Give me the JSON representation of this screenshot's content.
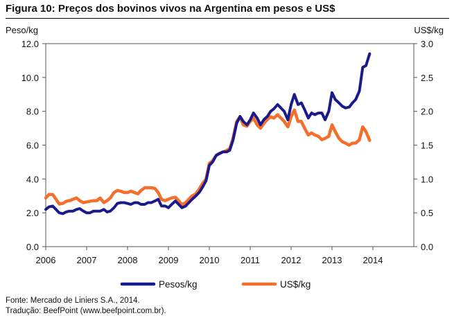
{
  "title": "Figura 10: Preços dos bovinos vivos na Argentina em pesos e US$",
  "source_line": "Fonte: Mercado de Liniers S.A., 2014.",
  "translation_line": "Tradução: BeefPoint (www.beefpoint.com.br).",
  "colors": {
    "pesos": "#1a1a8c",
    "usd": "#f36f2b",
    "axis": "#555555"
  },
  "chart_data": {
    "type": "line",
    "title": "Figura 10: Preços dos bovinos vivos na Argentina em pesos e US$",
    "ylabel_left": "Peso/kg",
    "ylabel_right": "US$/kg",
    "xlabel": "",
    "xlim": [
      2006.0,
      2015.0
    ],
    "ylim_left": [
      0,
      12
    ],
    "ylim_right": [
      0,
      3
    ],
    "grid": false,
    "legend": "bottom",
    "x_ticks": [
      2006,
      2007,
      2008,
      2009,
      2010,
      2011,
      2012,
      2013,
      2014
    ],
    "y_ticks_left": [
      "0.0",
      "2.0",
      "4.0",
      "6.0",
      "8.0",
      "10.0",
      "12.0"
    ],
    "y_ticks_right": [
      "0.0",
      "0.5",
      "1.0",
      "1.5",
      "2.0",
      "2.5",
      "3.0"
    ],
    "series": [
      {
        "name": "Pesos/kg",
        "axis": "left",
        "points": [
          [
            2006.0,
            2.2
          ],
          [
            2006.08,
            2.35
          ],
          [
            2006.17,
            2.4
          ],
          [
            2006.25,
            2.2
          ],
          [
            2006.33,
            2.0
          ],
          [
            2006.42,
            1.95
          ],
          [
            2006.5,
            2.05
          ],
          [
            2006.58,
            2.1
          ],
          [
            2006.67,
            2.1
          ],
          [
            2006.75,
            2.2
          ],
          [
            2006.83,
            2.25
          ],
          [
            2006.92,
            2.1
          ],
          [
            2007.0,
            2.0
          ],
          [
            2007.08,
            2.0
          ],
          [
            2007.17,
            2.1
          ],
          [
            2007.25,
            2.1
          ],
          [
            2007.33,
            2.1
          ],
          [
            2007.42,
            2.2
          ],
          [
            2007.5,
            2.05
          ],
          [
            2007.58,
            2.1
          ],
          [
            2007.67,
            2.3
          ],
          [
            2007.75,
            2.55
          ],
          [
            2007.83,
            2.6
          ],
          [
            2007.92,
            2.6
          ],
          [
            2008.0,
            2.55
          ],
          [
            2008.08,
            2.5
          ],
          [
            2008.17,
            2.6
          ],
          [
            2008.25,
            2.6
          ],
          [
            2008.33,
            2.5
          ],
          [
            2008.42,
            2.5
          ],
          [
            2008.5,
            2.6
          ],
          [
            2008.58,
            2.6
          ],
          [
            2008.67,
            2.7
          ],
          [
            2008.75,
            2.8
          ],
          [
            2008.83,
            2.4
          ],
          [
            2008.92,
            2.4
          ],
          [
            2009.0,
            2.3
          ],
          [
            2009.08,
            2.5
          ],
          [
            2009.17,
            2.7
          ],
          [
            2009.25,
            2.5
          ],
          [
            2009.33,
            2.3
          ],
          [
            2009.42,
            2.4
          ],
          [
            2009.5,
            2.6
          ],
          [
            2009.58,
            2.8
          ],
          [
            2009.67,
            3.0
          ],
          [
            2009.75,
            3.2
          ],
          [
            2009.83,
            3.5
          ],
          [
            2009.92,
            3.9
          ],
          [
            2010.0,
            4.8
          ],
          [
            2010.08,
            5.0
          ],
          [
            2010.17,
            5.4
          ],
          [
            2010.25,
            5.5
          ],
          [
            2010.33,
            5.6
          ],
          [
            2010.42,
            5.6
          ],
          [
            2010.5,
            5.7
          ],
          [
            2010.58,
            6.3
          ],
          [
            2010.67,
            7.3
          ],
          [
            2010.75,
            7.7
          ],
          [
            2010.83,
            7.4
          ],
          [
            2010.92,
            7.2
          ],
          [
            2011.0,
            7.5
          ],
          [
            2011.08,
            7.9
          ],
          [
            2011.17,
            7.6
          ],
          [
            2011.25,
            7.2
          ],
          [
            2011.33,
            7.5
          ],
          [
            2011.42,
            7.7
          ],
          [
            2011.5,
            8.0
          ],
          [
            2011.58,
            8.15
          ],
          [
            2011.67,
            8.4
          ],
          [
            2011.75,
            8.2
          ],
          [
            2011.83,
            8.0
          ],
          [
            2011.92,
            7.5
          ],
          [
            2012.0,
            8.4
          ],
          [
            2012.08,
            9.0
          ],
          [
            2012.17,
            8.4
          ],
          [
            2012.25,
            8.5
          ],
          [
            2012.33,
            8.1
          ],
          [
            2012.42,
            7.6
          ],
          [
            2012.5,
            7.9
          ],
          [
            2012.58,
            7.8
          ],
          [
            2012.67,
            7.9
          ],
          [
            2012.75,
            7.9
          ],
          [
            2012.83,
            7.5
          ],
          [
            2012.92,
            8.0
          ],
          [
            2013.0,
            9.1
          ],
          [
            2013.08,
            8.7
          ],
          [
            2013.17,
            8.5
          ],
          [
            2013.25,
            8.3
          ],
          [
            2013.33,
            8.2
          ],
          [
            2013.42,
            8.25
          ],
          [
            2013.5,
            8.5
          ],
          [
            2013.58,
            8.7
          ],
          [
            2013.67,
            9.2
          ],
          [
            2013.75,
            10.6
          ],
          [
            2013.83,
            10.7
          ],
          [
            2013.92,
            11.4
          ]
        ]
      },
      {
        "name": "US$/kg",
        "axis": "right",
        "points": [
          [
            2006.0,
            0.72
          ],
          [
            2006.08,
            0.77
          ],
          [
            2006.17,
            0.77
          ],
          [
            2006.25,
            0.7
          ],
          [
            2006.33,
            0.63
          ],
          [
            2006.42,
            0.64
          ],
          [
            2006.5,
            0.67
          ],
          [
            2006.58,
            0.68
          ],
          [
            2006.67,
            0.7
          ],
          [
            2006.75,
            0.72
          ],
          [
            2006.83,
            0.68
          ],
          [
            2006.92,
            0.65
          ],
          [
            2007.0,
            0.66
          ],
          [
            2007.08,
            0.67
          ],
          [
            2007.17,
            0.68
          ],
          [
            2007.25,
            0.68
          ],
          [
            2007.33,
            0.72
          ],
          [
            2007.42,
            0.65
          ],
          [
            2007.5,
            0.68
          ],
          [
            2007.58,
            0.72
          ],
          [
            2007.67,
            0.8
          ],
          [
            2007.75,
            0.83
          ],
          [
            2007.83,
            0.82
          ],
          [
            2007.92,
            0.8
          ],
          [
            2008.0,
            0.8
          ],
          [
            2008.08,
            0.82
          ],
          [
            2008.17,
            0.8
          ],
          [
            2008.25,
            0.78
          ],
          [
            2008.33,
            0.83
          ],
          [
            2008.42,
            0.87
          ],
          [
            2008.5,
            0.87
          ],
          [
            2008.58,
            0.87
          ],
          [
            2008.67,
            0.86
          ],
          [
            2008.75,
            0.8
          ],
          [
            2008.83,
            0.7
          ],
          [
            2008.92,
            0.68
          ],
          [
            2009.0,
            0.7
          ],
          [
            2009.08,
            0.72
          ],
          [
            2009.17,
            0.73
          ],
          [
            2009.25,
            0.68
          ],
          [
            2009.33,
            0.62
          ],
          [
            2009.42,
            0.65
          ],
          [
            2009.5,
            0.7
          ],
          [
            2009.58,
            0.75
          ],
          [
            2009.67,
            0.78
          ],
          [
            2009.75,
            0.85
          ],
          [
            2009.83,
            0.93
          ],
          [
            2009.92,
            1.0
          ],
          [
            2010.0,
            1.23
          ],
          [
            2010.08,
            1.27
          ],
          [
            2010.17,
            1.35
          ],
          [
            2010.25,
            1.38
          ],
          [
            2010.33,
            1.4
          ],
          [
            2010.42,
            1.42
          ],
          [
            2010.5,
            1.45
          ],
          [
            2010.58,
            1.6
          ],
          [
            2010.67,
            1.85
          ],
          [
            2010.75,
            1.92
          ],
          [
            2010.83,
            1.8
          ],
          [
            2010.92,
            1.78
          ],
          [
            2011.0,
            1.85
          ],
          [
            2011.08,
            1.9
          ],
          [
            2011.17,
            1.8
          ],
          [
            2011.25,
            1.75
          ],
          [
            2011.33,
            1.82
          ],
          [
            2011.42,
            1.88
          ],
          [
            2011.5,
            1.92
          ],
          [
            2011.58,
            1.9
          ],
          [
            2011.67,
            1.95
          ],
          [
            2011.75,
            1.9
          ],
          [
            2011.83,
            1.85
          ],
          [
            2011.92,
            1.77
          ],
          [
            2012.0,
            1.92
          ],
          [
            2012.08,
            2.02
          ],
          [
            2012.17,
            1.85
          ],
          [
            2012.25,
            1.85
          ],
          [
            2012.33,
            1.75
          ],
          [
            2012.42,
            1.65
          ],
          [
            2012.5,
            1.68
          ],
          [
            2012.58,
            1.65
          ],
          [
            2012.67,
            1.63
          ],
          [
            2012.75,
            1.58
          ],
          [
            2012.83,
            1.6
          ],
          [
            2012.92,
            1.63
          ],
          [
            2013.0,
            1.8
          ],
          [
            2013.08,
            1.7
          ],
          [
            2013.17,
            1.6
          ],
          [
            2013.25,
            1.55
          ],
          [
            2013.33,
            1.53
          ],
          [
            2013.42,
            1.5
          ],
          [
            2013.5,
            1.53
          ],
          [
            2013.58,
            1.53
          ],
          [
            2013.67,
            1.58
          ],
          [
            2013.75,
            1.77
          ],
          [
            2013.83,
            1.7
          ],
          [
            2013.92,
            1.57
          ]
        ]
      }
    ]
  }
}
